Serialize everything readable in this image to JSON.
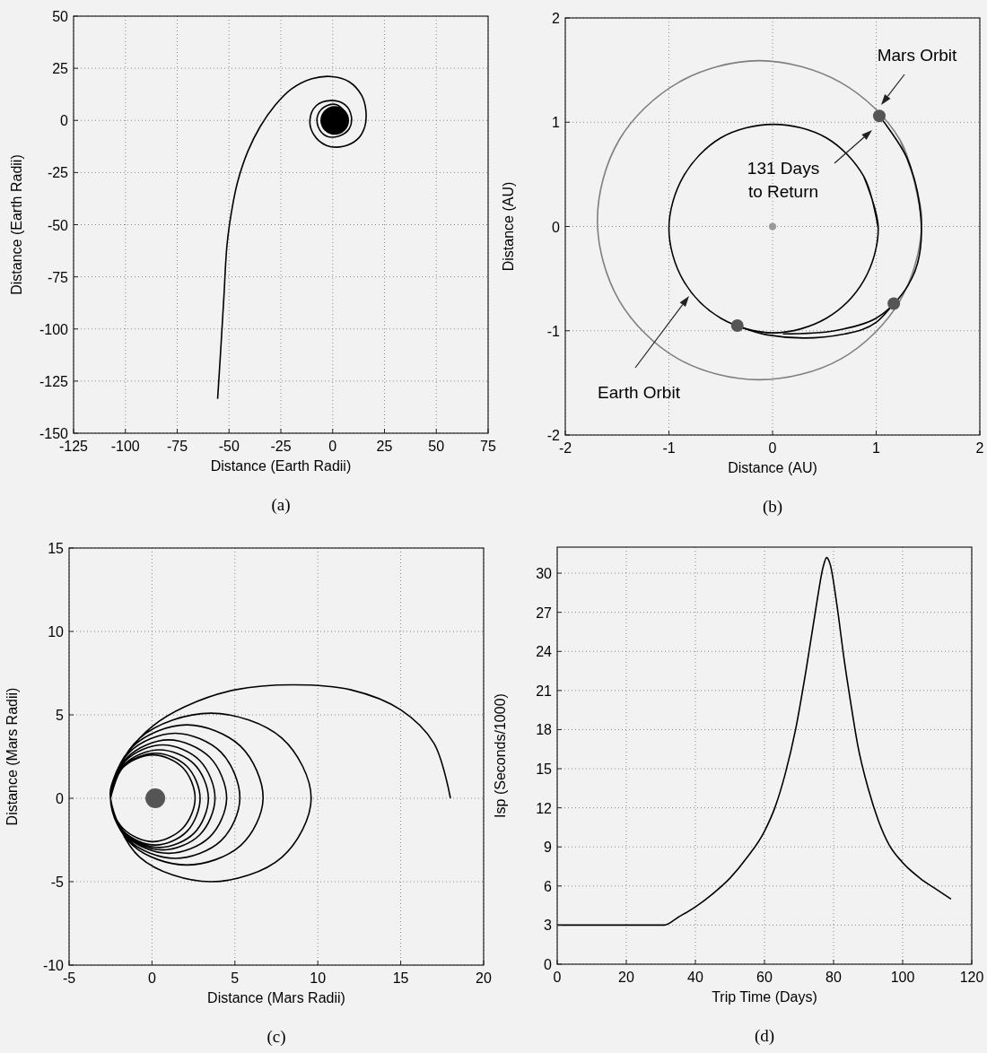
{
  "chart_data": [
    {
      "type": "line",
      "title": "(a)",
      "xlabel": "Distance (Earth Radii)",
      "ylabel": "Distance (Earth Radii)",
      "xlim": [
        -125,
        75
      ],
      "ylim": [
        -150,
        50
      ],
      "xticks": [
        -125,
        -100,
        -75,
        -50,
        -25,
        0,
        25,
        50,
        75
      ],
      "yticks": [
        -150,
        -125,
        -100,
        -75,
        -50,
        -25,
        0,
        25,
        50
      ],
      "grid": true,
      "series": [
        {
          "type": "line",
          "color": "#000000",
          "x": [
            -55.5,
            -54,
            -52.5,
            -51,
            -49,
            -46,
            -41,
            -35,
            -28,
            -20,
            -10,
            0,
            8,
            14,
            16,
            15.5,
            12,
            5,
            -3,
            -9,
            -11,
            -8,
            -1,
            6,
            9,
            8,
            3,
            -3,
            -7,
            -7,
            -3,
            2,
            6
          ],
          "values": [
            -133.5,
            -110,
            -85,
            -60,
            -45,
            -30,
            -15,
            -3,
            7,
            15,
            20,
            21,
            18.5,
            12,
            5,
            -3,
            -9,
            -12.5,
            -12,
            -7,
            0,
            7,
            9.5,
            7.5,
            2,
            -4,
            -7.5,
            -7.5,
            -3,
            3,
            7,
            7.5,
            4
          ]
        },
        {
          "type": "scatter",
          "marker": "circle",
          "color": "#000000",
          "x": [
            1
          ],
          "values": [
            0
          ]
        }
      ]
    },
    {
      "type": "line",
      "title": "(b)",
      "xlabel": "Distance (AU)",
      "ylabel": "Distance (AU)",
      "xlim": [
        -2,
        2
      ],
      "ylim": [
        -2,
        2
      ],
      "xticks": [
        -2,
        -1,
        0,
        1,
        2
      ],
      "yticks": [
        -2,
        -1,
        0,
        1,
        2
      ],
      "grid": true,
      "annotations": [
        "Mars Orbit",
        "131 Days\nto Return",
        "Earth Orbit"
      ],
      "series": [
        {
          "type": "line",
          "color": "#7f7f7f",
          "x": [
            1.44,
            1.23,
            0.66,
            -0.13,
            -0.91,
            -1.48,
            -1.69,
            -1.48,
            -0.91,
            -0.13,
            0.66,
            1.23,
            1.44,
            1.23
          ],
          "values": [
            0.06,
            0.83,
            1.38,
            1.59,
            1.38,
            0.83,
            0.06,
            -0.71,
            -1.27,
            -1.47,
            -1.27,
            -0.71,
            0.06,
            0.83
          ]
        },
        {
          "type": "line",
          "color": "#000000",
          "x": [
            1.02,
            0.88,
            0.52,
            0.01,
            -0.5,
            -0.86,
            -1.0,
            -0.86,
            -0.5,
            0.01,
            0.52,
            0.88,
            1.02,
            0.88
          ],
          "values": [
            -0.02,
            0.48,
            0.85,
            0.98,
            0.85,
            0.48,
            -0.02,
            -0.52,
            -0.88,
            -1.02,
            -0.88,
            -0.52,
            -0.02,
            0.48
          ]
        },
        {
          "type": "line",
          "color": "#000000",
          "x": [
            -0.35,
            -0.05,
            0.3,
            0.7,
            1.0,
            1.17
          ],
          "values": [
            -0.95,
            -1.04,
            -1.07,
            -1.03,
            -0.92,
            -0.74
          ]
        },
        {
          "type": "line",
          "color": "#000000",
          "x": [
            1.03,
            1.3,
            1.43,
            1.4,
            1.25,
            1.0,
            0.6,
            0.1
          ],
          "values": [
            1.06,
            0.65,
            0.1,
            -0.35,
            -0.65,
            -0.88,
            -1.0,
            -1.03
          ]
        },
        {
          "type": "scatter",
          "marker": "circle",
          "color": "#999999",
          "x": [
            0
          ],
          "values": [
            0
          ]
        },
        {
          "type": "scatter",
          "marker": "circle",
          "color": "#555555",
          "x": [
            -0.34,
            1.17,
            1.03
          ],
          "values": [
            -0.95,
            -0.74,
            1.06
          ]
        }
      ]
    },
    {
      "type": "line",
      "title": "(c)",
      "xlabel": "Distance (Mars Radii)",
      "ylabel": "Distance (Mars Radii)",
      "xlim": [
        -5,
        20
      ],
      "ylim": [
        -10,
        15
      ],
      "xticks": [
        -5,
        0,
        5,
        10,
        15,
        20
      ],
      "yticks": [
        -10,
        -5,
        0,
        5,
        10,
        15
      ],
      "grid": true,
      "series": [
        {
          "type": "line",
          "color": "#000000",
          "x": [
            18,
            17,
            15,
            12,
            8.5,
            5,
            2,
            0,
            -1.5,
            -2.3,
            -2.5,
            -0.73,
            3.55,
            7.83,
            9.6,
            7.83,
            3.55,
            -0.73,
            -2.5,
            -1.15,
            2.1,
            5.35,
            6.7,
            5.35,
            2.1,
            -1.15,
            -2.5,
            -1.36,
            1.4,
            4.16,
            5.3,
            4.16,
            1.4,
            -1.36,
            -2.5,
            -1.47,
            1.0,
            3.47,
            4.5,
            3.47,
            1.0,
            -1.47,
            -2.5,
            -1.58,
            0.65,
            2.88,
            3.8,
            2.88,
            0.65,
            -1.58,
            -2.5,
            -1.64,
            0.45,
            2.54,
            3.4,
            2.54,
            0.45,
            -1.64,
            -2.5,
            -1.71,
            0.2,
            2.11,
            2.9,
            2.11,
            0.2,
            -1.71,
            -2.5,
            -1.75,
            0.05,
            1.85,
            2.6,
            1.85,
            0.05,
            -1.75,
            -2.5
          ],
          "values": [
            0,
            3.3,
            5.3,
            6.5,
            6.8,
            6.5,
            5.5,
            4.3,
            2.7,
            1.2,
            0,
            -3.54,
            -5.0,
            -3.54,
            0,
            3.61,
            5.1,
            3.61,
            0,
            -2.83,
            -4.0,
            -2.83,
            0,
            3.11,
            4.4,
            3.11,
            0,
            -2.55,
            -3.6,
            -2.55,
            0,
            2.76,
            3.9,
            2.76,
            0,
            -2.33,
            -3.3,
            -2.33,
            0,
            2.47,
            3.5,
            2.47,
            0,
            -2.19,
            -3.1,
            -2.19,
            0,
            2.26,
            3.2,
            2.26,
            0,
            -2.09,
            -2.95,
            -2.09,
            0,
            2.05,
            2.9,
            2.05,
            0,
            -1.98,
            -2.8,
            -1.98,
            0,
            1.91,
            2.7,
            1.91,
            0,
            -1.8,
            -2.6,
            -1.8,
            0,
            1.84,
            2.6,
            1.84,
            0
          ]
        },
        {
          "type": "scatter",
          "marker": "circle",
          "color": "#555555",
          "x": [
            0.2
          ],
          "values": [
            0
          ]
        }
      ]
    },
    {
      "type": "line",
      "title": "(d)",
      "xlabel": "Trip Time (Days)",
      "ylabel": "Isp (Seconds/1000)",
      "xlim": [
        0,
        120
      ],
      "ylim": [
        0,
        32
      ],
      "xticks": [
        0,
        20,
        40,
        60,
        80,
        100,
        120
      ],
      "yticks": [
        0,
        3,
        6,
        9,
        12,
        15,
        18,
        21,
        24,
        27,
        30
      ],
      "grid": true,
      "series": [
        {
          "type": "line",
          "color": "#000000",
          "x": [
            0,
            31,
            35,
            40,
            45,
            50,
            55,
            60,
            63,
            66,
            69,
            72,
            75,
            77,
            78,
            79,
            81,
            83,
            85,
            87,
            90,
            93,
            96,
            100,
            105,
            110,
            114
          ],
          "values": [
            3,
            3,
            3.6,
            4.4,
            5.4,
            6.6,
            8.2,
            10.2,
            12,
            14.6,
            18,
            22.5,
            27.5,
            30.5,
            31.2,
            30.7,
            27.5,
            23.5,
            20,
            16.8,
            13.5,
            11,
            9.2,
            7.8,
            6.6,
            5.7,
            5.0
          ]
        }
      ]
    }
  ]
}
